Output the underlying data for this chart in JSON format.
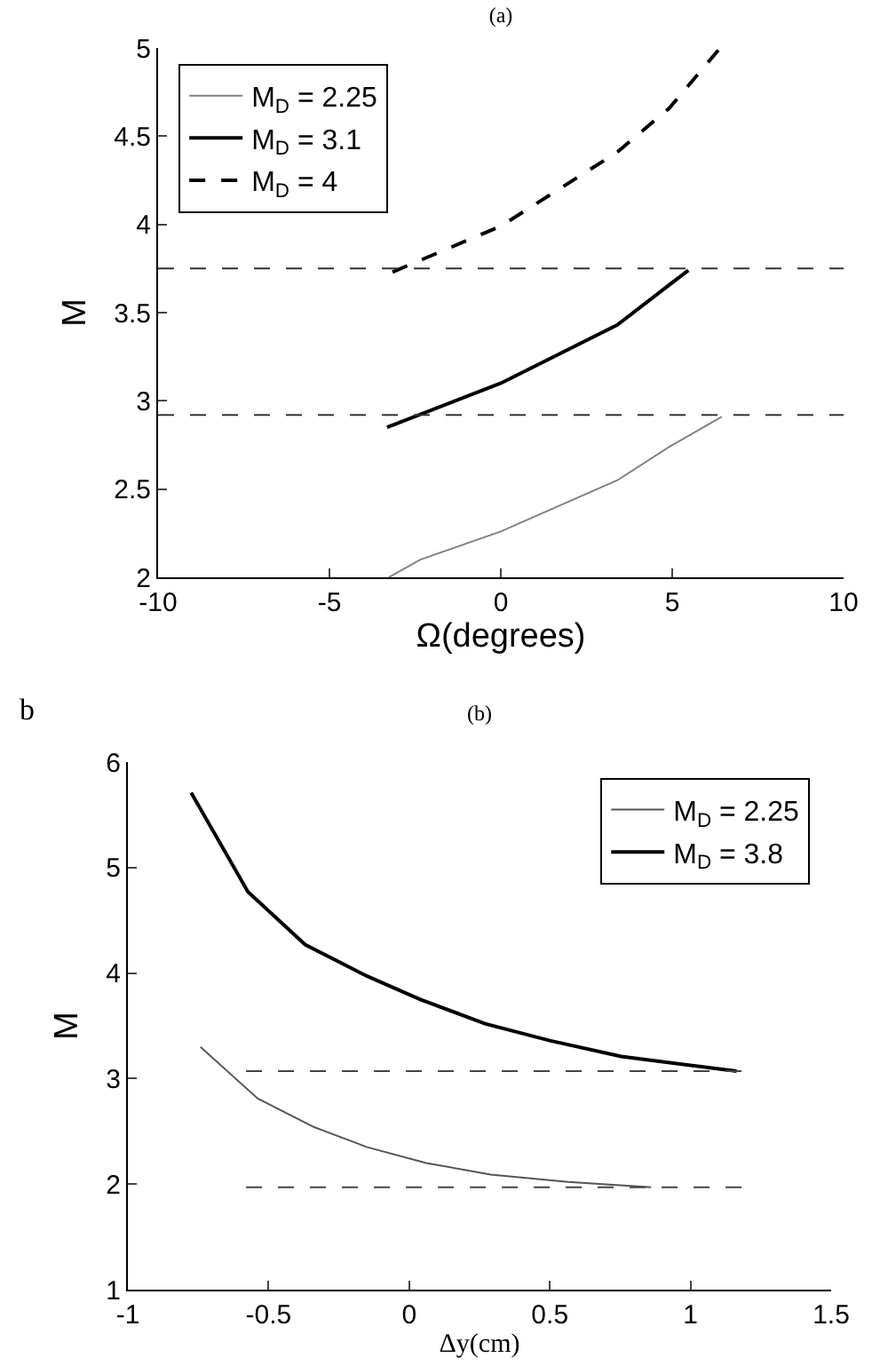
{
  "chart_data": [
    {
      "type": "line",
      "title": "(a)",
      "xlabel": "Ω(degrees)",
      "ylabel": "M",
      "xlim": [
        -10,
        10
      ],
      "ylim": [
        2,
        5
      ],
      "xticks": [
        -10,
        -5,
        0,
        5,
        10
      ],
      "yticks": [
        2,
        2.5,
        3,
        3.5,
        4,
        4.5,
        5
      ],
      "grid": false,
      "legend": "top left",
      "marker": "none",
      "series": [
        {
          "name": "M$_{D}$ = 2.25",
          "color": "#808080",
          "line_style": "solid",
          "x": [
            -3.27,
            -2.35,
            0,
            3.4,
            4.92,
            6.45
          ],
          "values": [
            2.0,
            2.1,
            2.26,
            2.55,
            2.74,
            2.91
          ]
        },
        {
          "name": "M$_{D}$ = 3.1",
          "color": "#000000",
          "line_style": "solid",
          "x": [
            -3.32,
            0,
            3.4,
            4.6,
            5.47
          ],
          "values": [
            2.85,
            3.1,
            3.43,
            3.61,
            3.74
          ]
        },
        {
          "name": "M$_{D}$ = 4",
          "color": "#000000",
          "line_style": "dashed",
          "x": [
            -3.16,
            0,
            3.4,
            4.92,
            6.4
          ],
          "values": [
            3.73,
            3.99,
            4.41,
            4.66,
            5.0
          ]
        }
      ],
      "ref_lines": [
        {
          "axis": "y",
          "value": 3.75,
          "label": null,
          "color": "#333333",
          "line_style": "dashed"
        },
        {
          "axis": "y",
          "value": 2.92,
          "label": null,
          "color": "#333333",
          "line_style": "dashed"
        }
      ]
    },
    {
      "type": "line",
      "title": "(b)",
      "xlabel": "Δy(cm)",
      "ylabel": "M",
      "xlim": [
        -1,
        1.5
      ],
      "ylim": [
        1,
        6
      ],
      "xticks": [
        -1,
        -0.5,
        0,
        0.5,
        1,
        1.5
      ],
      "yticks": [
        1,
        2,
        3,
        4,
        5,
        6
      ],
      "grid": false,
      "legend": "top right",
      "marker": "none",
      "annotations": [
        "b"
      ],
      "series": [
        {
          "name": "M$_{D}$ = 2.25",
          "color": "#555555",
          "line_style": "solid",
          "x": [
            -0.742,
            -0.538,
            -0.338,
            -0.149,
            0.061,
            0.29,
            0.565,
            0.86
          ],
          "values": [
            3.3,
            2.81,
            2.54,
            2.35,
            2.2,
            2.09,
            2.02,
            1.97
          ]
        },
        {
          "name": "M$_{D}$ = 3.8",
          "color": "#000000",
          "line_style": "solid",
          "x": [
            -0.775,
            -0.573,
            -0.37,
            -0.149,
            0.04,
            0.27,
            0.5,
            0.754,
            1.164
          ],
          "values": [
            5.71,
            4.77,
            4.27,
            3.97,
            3.75,
            3.52,
            3.36,
            3.21,
            3.07
          ]
        },
        {
          "color": "#444444",
          "line_style": "dashed",
          "x": [
            -0.58,
            1.195
          ],
          "values": [
            3.07,
            3.07
          ]
        },
        {
          "color": "#444444",
          "line_style": "dashed",
          "x": [
            -0.58,
            1.195
          ],
          "values": [
            1.97,
            1.97
          ]
        }
      ]
    }
  ]
}
